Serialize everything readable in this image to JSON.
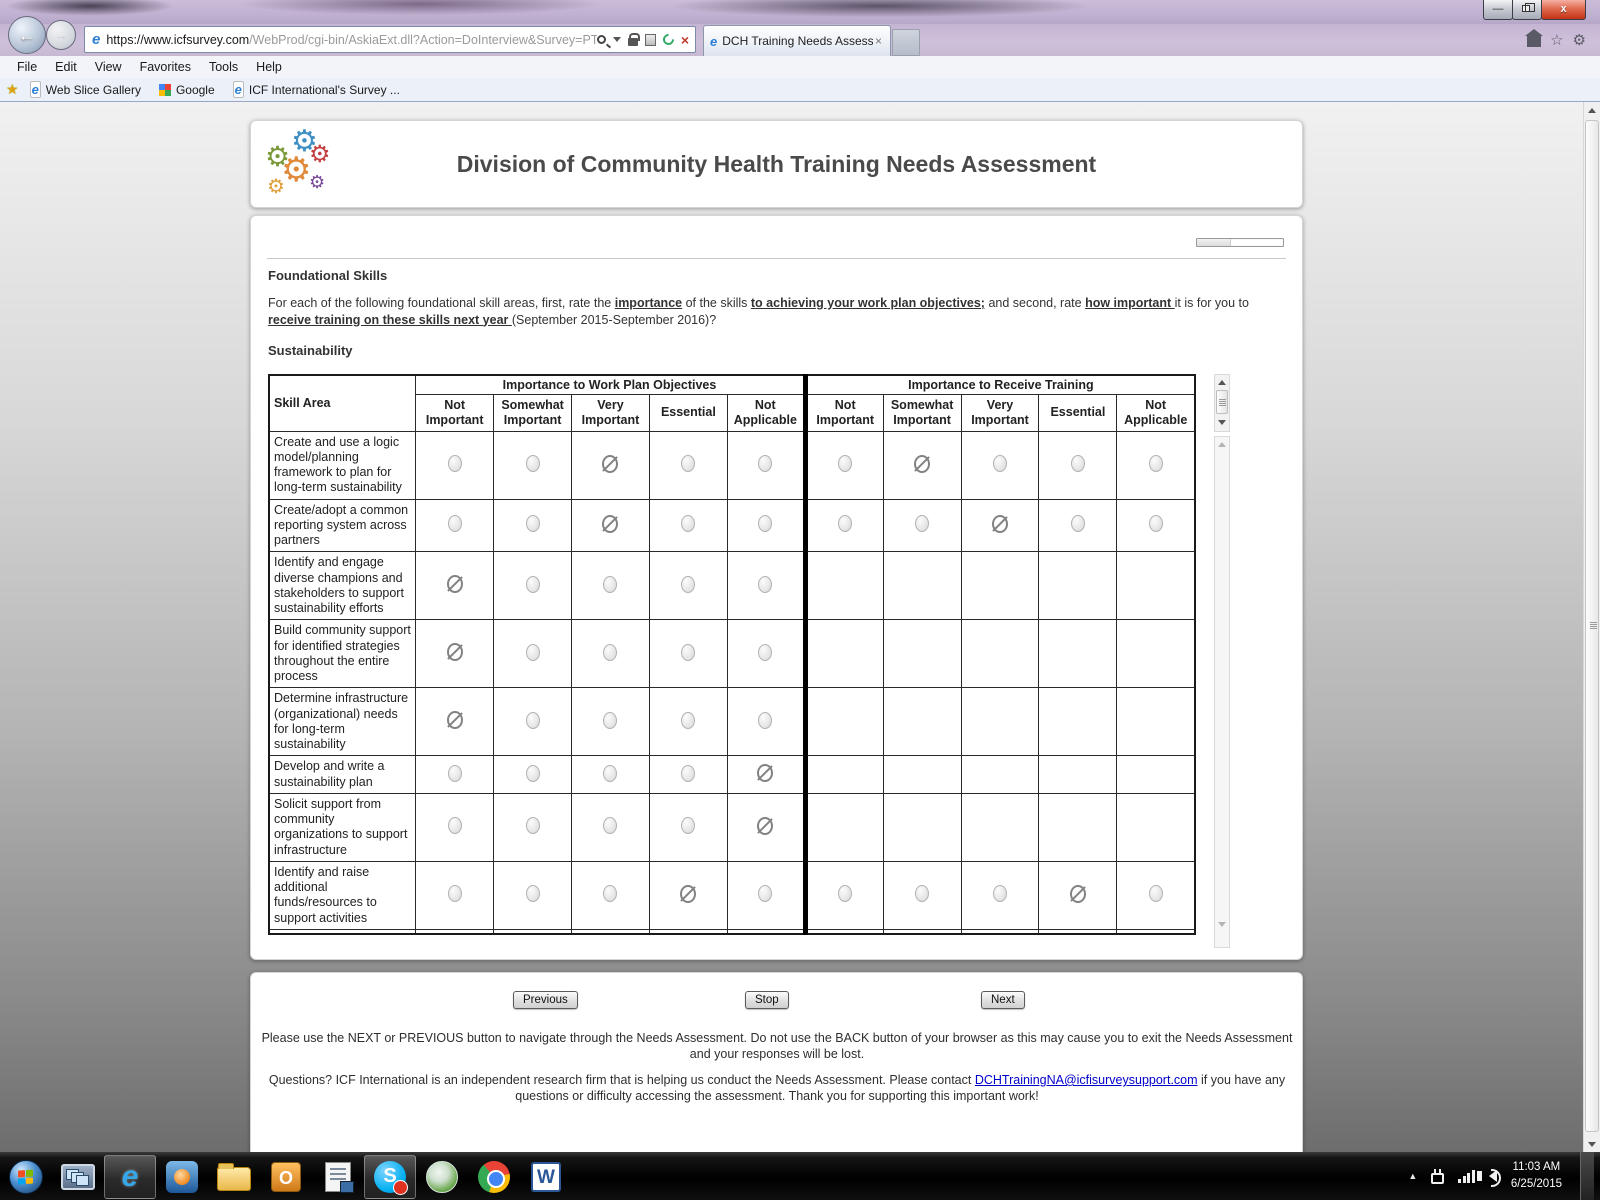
{
  "browser": {
    "url_domain": "https://www.icfsurvey.com",
    "url_path": "/WebProd/cgi-bin/AskiaExt.dll?Action=DoInterview&Survey=PTHKFV",
    "tab_title": "DCH Training Needs Assess...",
    "menu_items": [
      "File",
      "Edit",
      "View",
      "Favorites",
      "Tools",
      "Help"
    ],
    "favorites_items": [
      "Web Slice Gallery",
      "Google",
      "ICF International's Survey ..."
    ]
  },
  "page": {
    "header_title": "Division of Community Health Training Needs Assessment",
    "progress_percent": 40,
    "section_heading": "Foundational Skills",
    "intro_segments": [
      {
        "text": "For each of the following foundational skill areas, first, rate the "
      },
      {
        "text": "importance",
        "emph": true
      },
      {
        "text": " of the skills "
      },
      {
        "text": "to achieving your work plan objectives;",
        "emph": true
      },
      {
        "text": " and second, rate "
      },
      {
        "text": "how important ",
        "emph": true
      },
      {
        "text": "it is for you to "
      },
      {
        "text": "receive training on these skills next year ",
        "emph": true
      },
      {
        "text": "(September 2015-September 2016)?"
      }
    ],
    "subsection_heading": "Sustainability",
    "table": {
      "skill_area_header": "Skill Area",
      "group_headers": [
        "Importance to Work Plan Objectives",
        "Importance to Receive Training"
      ],
      "options": [
        "Not Important",
        "Somewhat Important",
        "Very Important",
        "Essential",
        "Not Applicable"
      ],
      "rows": [
        {
          "skill": "Create and use a logic model/planning framework to plan for long-term sustainability",
          "work_plan": "Very Important",
          "training": "Somewhat Important",
          "training_has_radios": true
        },
        {
          "skill": "Create/adopt a common reporting system across partners",
          "work_plan": "Very Important",
          "training": "Very Important",
          "training_has_radios": true
        },
        {
          "skill": "Identify and engage diverse champions and stakeholders to support sustainability efforts",
          "work_plan": "Not Important",
          "training": null,
          "training_has_radios": false
        },
        {
          "skill": "Build community support for identified strategies throughout the entire process",
          "work_plan": "Not Important",
          "training": null,
          "training_has_radios": false
        },
        {
          "skill": "Determine infrastructure (organizational) needs for long-term sustainability",
          "work_plan": "Not Important",
          "training": null,
          "training_has_radios": false
        },
        {
          "skill": "Develop and write a sustainability plan",
          "work_plan": "Not Applicable",
          "training": null,
          "training_has_radios": false
        },
        {
          "skill": "Solicit support from community organizations to support infrastructure",
          "work_plan": "Not Applicable",
          "training": null,
          "training_has_radios": false
        },
        {
          "skill": "Identify and raise additional funds/resources to support activities",
          "work_plan": "Essential",
          "training": "Essential",
          "training_has_radios": true
        }
      ]
    },
    "footer": {
      "buttons": {
        "previous": "Previous",
        "stop": "Stop",
        "next": "Next"
      },
      "note1": "Please use the NEXT or PREVIOUS button to navigate through the Needs Assessment. Do not use the BACK button of your browser as this may cause you to exit the Needs Assessment and your responses will be lost.",
      "note2_segments": [
        {
          "text": "Questions? ICF International is an independent research firm that is helping us conduct the Needs Assessment. Please contact "
        },
        {
          "text": "DCHTrainingNA@icfisurveysupport.com",
          "link": true
        },
        {
          "text": " if you have any questions or difficulty accessing the assessment. Thank you for supporting this important work!"
        }
      ]
    }
  },
  "taskbar": {
    "clock_time": "11:03 AM",
    "clock_date": "6/25/2015"
  },
  "colors": {
    "link": "#0000cc",
    "title_text": "#4a4a4a",
    "selected_radio": "#828282",
    "table_border": "#1a1a1a"
  }
}
